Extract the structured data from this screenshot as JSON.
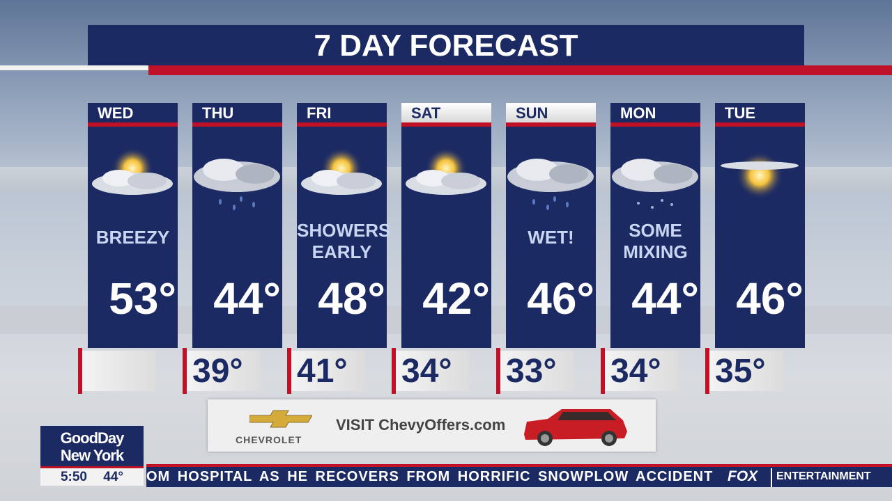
{
  "title": "7 DAY FORECAST",
  "colors": {
    "navy": "#1c2a63",
    "red": "#bf1128"
  },
  "days": [
    {
      "day": "WED",
      "icon": "partly-sunny-icon",
      "condition": "BREEZY",
      "condition2": "",
      "high": "53°",
      "low": ""
    },
    {
      "day": "THU",
      "icon": "rain-cloud-icon",
      "condition": "",
      "condition2": "",
      "high": "44°",
      "low": "39°"
    },
    {
      "day": "FRI",
      "icon": "partly-sunny-icon",
      "condition": "SHOWERS",
      "condition2": "EARLY",
      "high": "48°",
      "low": "41°"
    },
    {
      "day": "SAT",
      "icon": "partly-sunny-icon",
      "condition": "",
      "condition2": "",
      "high": "42°",
      "low": "34°"
    },
    {
      "day": "SUN",
      "icon": "rain-cloud-icon",
      "condition": "WET!",
      "condition2": "",
      "high": "46°",
      "low": "33°"
    },
    {
      "day": "MON",
      "icon": "mixed-precip-cloud-icon",
      "condition": "SOME",
      "condition2": "MIXING",
      "high": "44°",
      "low": "34°"
    },
    {
      "day": "TUE",
      "icon": "sunny-icon",
      "condition": "",
      "condition2": "",
      "high": "46°",
      "low": "35°"
    }
  ],
  "ad": {
    "brand": "CHEVROLET",
    "text": "VISIT ChevyOffers.com"
  },
  "show": {
    "line1": "GoodDay",
    "line2": "New York",
    "time": "5:50",
    "temp": "44°"
  },
  "ticker": {
    "text": "OM HOSPITAL AS HE RECOVERS FROM HORRIFIC SNOWPLOW ACCIDENT",
    "network": "FOX",
    "section": "ENTERTAINMENT"
  }
}
